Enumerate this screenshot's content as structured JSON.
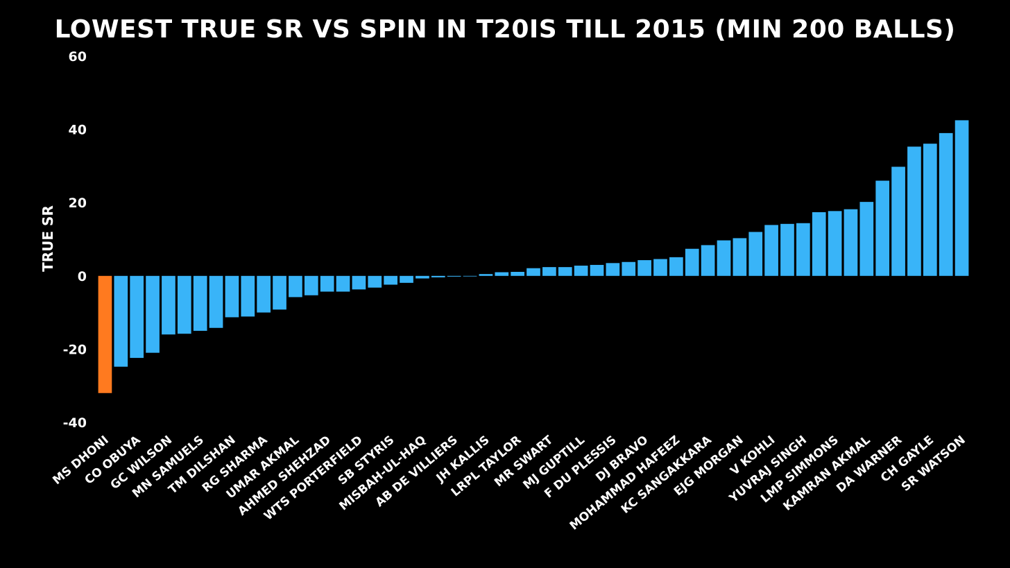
{
  "chart_data": {
    "type": "bar",
    "title": "Lowest True SR vs spin in T20Is till 2015 (Min 200 balls)",
    "ylabel": "TRUE SR",
    "xlabel": "",
    "ylim": [
      -40,
      60
    ],
    "yticks": [
      60,
      40,
      20,
      0,
      -20,
      -40
    ],
    "grid": false,
    "colors": {
      "default": "#39b4f8",
      "highlight": "#ff7a1f"
    },
    "highlight_index": 0,
    "categories": [
      "MS DHONI",
      "",
      "CO OBUYA",
      "",
      "GC WILSON",
      "",
      "MN SAMUELS",
      "",
      "TM DILSHAN",
      "",
      "RG SHARMA",
      "",
      "UMAR AKMAL",
      "",
      "AHMED SHEHZAD",
      "",
      "WTS PORTERFIELD",
      "",
      "SB STYRIS",
      "",
      "MISBAH-UL-HAQ",
      "",
      "AB DE VILLIERS",
      "",
      "JH KALLIS",
      "",
      "LRPL TAYLOR",
      "",
      "MR SWART",
      "",
      "MJ GUPTILL",
      "",
      "F DU PLESSIS",
      "",
      "DJ BRAVO",
      "",
      "MOHAMMAD HAFEEZ",
      "",
      "KC SANGAKKARA",
      "",
      "EJG MORGAN",
      "",
      "V KOHLI",
      "",
      "YUVRAJ SINGH",
      "",
      "LMP SIMMONS",
      "",
      "KAMRAN AKMAL",
      "",
      "DA WARNER",
      "",
      "CH GAYLE",
      "",
      "SR WATSON"
    ],
    "values": [
      -32,
      -24.8,
      -22.4,
      -21,
      -16,
      -15.8,
      -15,
      -14.2,
      -11.3,
      -11.1,
      -10,
      -9.2,
      -5.8,
      -5.3,
      -4.3,
      -4.3,
      -3.7,
      -3.2,
      -2.4,
      -1.9,
      -0.7,
      -0.4,
      -0.2,
      -0.1,
      0.5,
      1,
      1.1,
      2.1,
      2.4,
      2.4,
      2.8,
      3,
      3.5,
      3.8,
      4.3,
      4.6,
      5.1,
      7.4,
      8.4,
      9.7,
      10.3,
      12,
      13.9,
      14.2,
      14.4,
      17.4,
      17.7,
      18.2,
      20.2,
      26,
      29.8,
      35.3,
      36.1,
      39,
      42.5
    ]
  }
}
